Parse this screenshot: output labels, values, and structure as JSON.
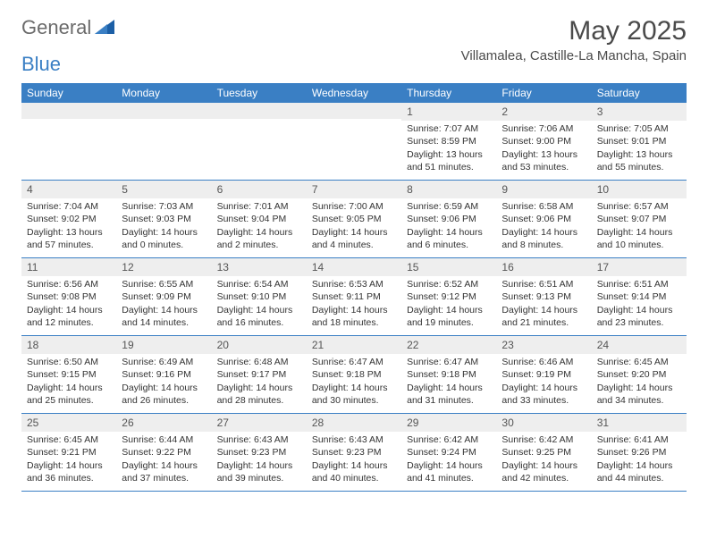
{
  "brand": {
    "text1": "General",
    "text2": "Blue",
    "icon_color": "#1c5fa6"
  },
  "title": "May 2025",
  "location": "Villamalea, Castille-La Mancha, Spain",
  "colors": {
    "header_bg": "#3a7fc4",
    "header_text": "#ffffff",
    "daynum_bg": "#eeeeee",
    "row_border": "#3a7fc4",
    "body_text": "#333333",
    "title_text": "#4a4a4a"
  },
  "weekdays": [
    "Sunday",
    "Monday",
    "Tuesday",
    "Wednesday",
    "Thursday",
    "Friday",
    "Saturday"
  ],
  "weeks": [
    [
      {
        "n": "",
        "sr": "",
        "ss": "",
        "dl": ""
      },
      {
        "n": "",
        "sr": "",
        "ss": "",
        "dl": ""
      },
      {
        "n": "",
        "sr": "",
        "ss": "",
        "dl": ""
      },
      {
        "n": "",
        "sr": "",
        "ss": "",
        "dl": ""
      },
      {
        "n": "1",
        "sr": "Sunrise: 7:07 AM",
        "ss": "Sunset: 8:59 PM",
        "dl": "Daylight: 13 hours and 51 minutes."
      },
      {
        "n": "2",
        "sr": "Sunrise: 7:06 AM",
        "ss": "Sunset: 9:00 PM",
        "dl": "Daylight: 13 hours and 53 minutes."
      },
      {
        "n": "3",
        "sr": "Sunrise: 7:05 AM",
        "ss": "Sunset: 9:01 PM",
        "dl": "Daylight: 13 hours and 55 minutes."
      }
    ],
    [
      {
        "n": "4",
        "sr": "Sunrise: 7:04 AM",
        "ss": "Sunset: 9:02 PM",
        "dl": "Daylight: 13 hours and 57 minutes."
      },
      {
        "n": "5",
        "sr": "Sunrise: 7:03 AM",
        "ss": "Sunset: 9:03 PM",
        "dl": "Daylight: 14 hours and 0 minutes."
      },
      {
        "n": "6",
        "sr": "Sunrise: 7:01 AM",
        "ss": "Sunset: 9:04 PM",
        "dl": "Daylight: 14 hours and 2 minutes."
      },
      {
        "n": "7",
        "sr": "Sunrise: 7:00 AM",
        "ss": "Sunset: 9:05 PM",
        "dl": "Daylight: 14 hours and 4 minutes."
      },
      {
        "n": "8",
        "sr": "Sunrise: 6:59 AM",
        "ss": "Sunset: 9:06 PM",
        "dl": "Daylight: 14 hours and 6 minutes."
      },
      {
        "n": "9",
        "sr": "Sunrise: 6:58 AM",
        "ss": "Sunset: 9:06 PM",
        "dl": "Daylight: 14 hours and 8 minutes."
      },
      {
        "n": "10",
        "sr": "Sunrise: 6:57 AM",
        "ss": "Sunset: 9:07 PM",
        "dl": "Daylight: 14 hours and 10 minutes."
      }
    ],
    [
      {
        "n": "11",
        "sr": "Sunrise: 6:56 AM",
        "ss": "Sunset: 9:08 PM",
        "dl": "Daylight: 14 hours and 12 minutes."
      },
      {
        "n": "12",
        "sr": "Sunrise: 6:55 AM",
        "ss": "Sunset: 9:09 PM",
        "dl": "Daylight: 14 hours and 14 minutes."
      },
      {
        "n": "13",
        "sr": "Sunrise: 6:54 AM",
        "ss": "Sunset: 9:10 PM",
        "dl": "Daylight: 14 hours and 16 minutes."
      },
      {
        "n": "14",
        "sr": "Sunrise: 6:53 AM",
        "ss": "Sunset: 9:11 PM",
        "dl": "Daylight: 14 hours and 18 minutes."
      },
      {
        "n": "15",
        "sr": "Sunrise: 6:52 AM",
        "ss": "Sunset: 9:12 PM",
        "dl": "Daylight: 14 hours and 19 minutes."
      },
      {
        "n": "16",
        "sr": "Sunrise: 6:51 AM",
        "ss": "Sunset: 9:13 PM",
        "dl": "Daylight: 14 hours and 21 minutes."
      },
      {
        "n": "17",
        "sr": "Sunrise: 6:51 AM",
        "ss": "Sunset: 9:14 PM",
        "dl": "Daylight: 14 hours and 23 minutes."
      }
    ],
    [
      {
        "n": "18",
        "sr": "Sunrise: 6:50 AM",
        "ss": "Sunset: 9:15 PM",
        "dl": "Daylight: 14 hours and 25 minutes."
      },
      {
        "n": "19",
        "sr": "Sunrise: 6:49 AM",
        "ss": "Sunset: 9:16 PM",
        "dl": "Daylight: 14 hours and 26 minutes."
      },
      {
        "n": "20",
        "sr": "Sunrise: 6:48 AM",
        "ss": "Sunset: 9:17 PM",
        "dl": "Daylight: 14 hours and 28 minutes."
      },
      {
        "n": "21",
        "sr": "Sunrise: 6:47 AM",
        "ss": "Sunset: 9:18 PM",
        "dl": "Daylight: 14 hours and 30 minutes."
      },
      {
        "n": "22",
        "sr": "Sunrise: 6:47 AM",
        "ss": "Sunset: 9:18 PM",
        "dl": "Daylight: 14 hours and 31 minutes."
      },
      {
        "n": "23",
        "sr": "Sunrise: 6:46 AM",
        "ss": "Sunset: 9:19 PM",
        "dl": "Daylight: 14 hours and 33 minutes."
      },
      {
        "n": "24",
        "sr": "Sunrise: 6:45 AM",
        "ss": "Sunset: 9:20 PM",
        "dl": "Daylight: 14 hours and 34 minutes."
      }
    ],
    [
      {
        "n": "25",
        "sr": "Sunrise: 6:45 AM",
        "ss": "Sunset: 9:21 PM",
        "dl": "Daylight: 14 hours and 36 minutes."
      },
      {
        "n": "26",
        "sr": "Sunrise: 6:44 AM",
        "ss": "Sunset: 9:22 PM",
        "dl": "Daylight: 14 hours and 37 minutes."
      },
      {
        "n": "27",
        "sr": "Sunrise: 6:43 AM",
        "ss": "Sunset: 9:23 PM",
        "dl": "Daylight: 14 hours and 39 minutes."
      },
      {
        "n": "28",
        "sr": "Sunrise: 6:43 AM",
        "ss": "Sunset: 9:23 PM",
        "dl": "Daylight: 14 hours and 40 minutes."
      },
      {
        "n": "29",
        "sr": "Sunrise: 6:42 AM",
        "ss": "Sunset: 9:24 PM",
        "dl": "Daylight: 14 hours and 41 minutes."
      },
      {
        "n": "30",
        "sr": "Sunrise: 6:42 AM",
        "ss": "Sunset: 9:25 PM",
        "dl": "Daylight: 14 hours and 42 minutes."
      },
      {
        "n": "31",
        "sr": "Sunrise: 6:41 AM",
        "ss": "Sunset: 9:26 PM",
        "dl": "Daylight: 14 hours and 44 minutes."
      }
    ]
  ]
}
